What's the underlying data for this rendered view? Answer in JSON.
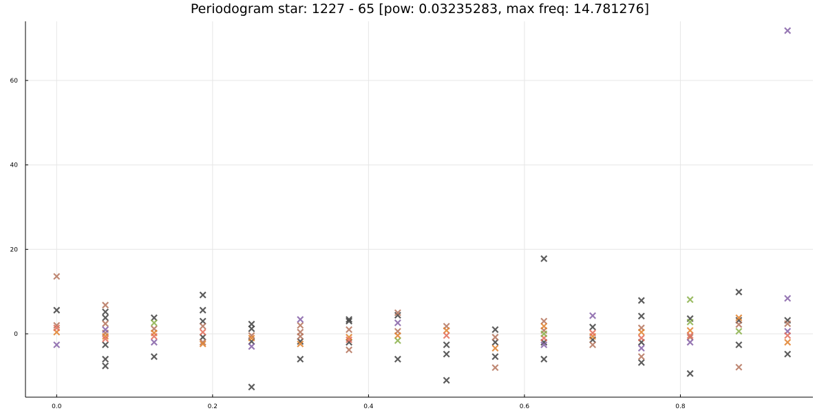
{
  "chart_data": {
    "type": "scatter",
    "title": "Periodogram star: 1227 - 65 [pow: 0.03235283, max freq: 14.781276]",
    "xlabel": "",
    "ylabel": "",
    "xlim": [
      -0.04,
      0.97
    ],
    "ylim": [
      -15,
      74
    ],
    "xticks": [
      0.0,
      0.2,
      0.4,
      0.6,
      0.8
    ],
    "xtick_labels": [
      "0.0",
      "0.2",
      "0.4",
      "0.6",
      "0.8"
    ],
    "yticks": [
      0,
      20,
      40,
      60
    ],
    "ytick_labels": [
      "0",
      "20",
      "40",
      "60"
    ],
    "grid": true,
    "legend": "none",
    "marker": "x",
    "series": [
      {
        "color": "#404040",
        "points": [
          [
            0.0,
            5.6
          ],
          [
            0.0625,
            5.2
          ],
          [
            0.0625,
            3.8
          ],
          [
            0.0625,
            -2.6
          ],
          [
            0.0625,
            -6.0
          ],
          [
            0.0625,
            -7.6
          ],
          [
            0.125,
            3.8
          ],
          [
            0.125,
            -5.4
          ],
          [
            0.1875,
            9.2
          ],
          [
            0.1875,
            5.6
          ],
          [
            0.1875,
            3.0
          ],
          [
            0.1875,
            -0.8
          ],
          [
            0.25,
            2.3
          ],
          [
            0.25,
            1.2
          ],
          [
            0.25,
            -1.8
          ],
          [
            0.25,
            -12.6
          ],
          [
            0.3125,
            -1.8
          ],
          [
            0.3125,
            -6.0
          ],
          [
            0.375,
            3.4
          ],
          [
            0.375,
            3.0
          ],
          [
            0.375,
            -2.0
          ],
          [
            0.4375,
            4.4
          ],
          [
            0.4375,
            -6.0
          ],
          [
            0.5,
            -2.6
          ],
          [
            0.5,
            -4.8
          ],
          [
            0.5,
            -11.0
          ],
          [
            0.5625,
            1.0
          ],
          [
            0.5625,
            -2.0
          ],
          [
            0.5625,
            -5.4
          ],
          [
            0.625,
            17.8
          ],
          [
            0.625,
            -2.0
          ],
          [
            0.625,
            -6.0
          ],
          [
            0.6875,
            1.6
          ],
          [
            0.6875,
            -1.4
          ],
          [
            0.75,
            7.9
          ],
          [
            0.75,
            4.2
          ],
          [
            0.75,
            -2.0
          ],
          [
            0.75,
            -6.8
          ],
          [
            0.8125,
            3.6
          ],
          [
            0.8125,
            -9.4
          ],
          [
            0.875,
            9.9
          ],
          [
            0.875,
            3.2
          ],
          [
            0.875,
            -2.6
          ],
          [
            0.9375,
            3.2
          ],
          [
            0.9375,
            -4.8
          ]
        ]
      },
      {
        "color": "#b5745c",
        "points": [
          [
            0.0,
            13.6
          ],
          [
            0.0,
            2.0
          ],
          [
            0.0625,
            6.8
          ],
          [
            0.0625,
            2.4
          ],
          [
            0.0625,
            0.2
          ],
          [
            0.125,
            1.2
          ],
          [
            0.1875,
            1.8
          ],
          [
            0.1875,
            -2.0
          ],
          [
            0.25,
            -0.4
          ],
          [
            0.3125,
            2.0
          ],
          [
            0.3125,
            0.4
          ],
          [
            0.3125,
            -0.6
          ],
          [
            0.375,
            1.0
          ],
          [
            0.375,
            -3.8
          ],
          [
            0.4375,
            5.0
          ],
          [
            0.4375,
            0.6
          ],
          [
            0.5,
            1.8
          ],
          [
            0.5625,
            -0.8
          ],
          [
            0.5625,
            -8.0
          ],
          [
            0.625,
            3.0
          ],
          [
            0.625,
            0.8
          ],
          [
            0.6875,
            -2.6
          ],
          [
            0.75,
            1.4
          ],
          [
            0.75,
            -5.4
          ],
          [
            0.8125,
            -0.8
          ],
          [
            0.875,
            2.2
          ],
          [
            0.875,
            -7.9
          ],
          [
            0.9375,
            2.4
          ]
        ]
      },
      {
        "color": "#8561a8",
        "points": [
          [
            0.0,
            -2.6
          ],
          [
            0.0625,
            1.0
          ],
          [
            0.125,
            -2.0
          ],
          [
            0.25,
            -3.0
          ],
          [
            0.3125,
            3.4
          ],
          [
            0.4375,
            2.6
          ],
          [
            0.625,
            -2.6
          ],
          [
            0.6875,
            4.3
          ],
          [
            0.75,
            -3.4
          ],
          [
            0.8125,
            -2.0
          ],
          [
            0.9375,
            71.8
          ],
          [
            0.9375,
            8.4
          ],
          [
            0.9375,
            0.6
          ]
        ]
      },
      {
        "color": "#e1812c",
        "points": [
          [
            0.0,
            0.4
          ],
          [
            0.0625,
            -0.6
          ],
          [
            0.125,
            0.2
          ],
          [
            0.1875,
            -2.4
          ],
          [
            0.25,
            -1.0
          ],
          [
            0.3125,
            -2.4
          ],
          [
            0.375,
            -0.8
          ],
          [
            0.4375,
            -0.4
          ],
          [
            0.5,
            0.8
          ],
          [
            0.5625,
            -3.4
          ],
          [
            0.625,
            1.8
          ],
          [
            0.6875,
            -0.6
          ],
          [
            0.75,
            0.4
          ],
          [
            0.8125,
            0.8
          ],
          [
            0.875,
            3.8
          ],
          [
            0.9375,
            -2.0
          ]
        ]
      },
      {
        "color": "#e36d5a",
        "points": [
          [
            0.0,
            1.4
          ],
          [
            0.0625,
            -1.2
          ],
          [
            0.125,
            -0.6
          ],
          [
            0.1875,
            0.4
          ],
          [
            0.375,
            -1.4
          ],
          [
            0.5,
            -0.4
          ],
          [
            0.625,
            -1.0
          ],
          [
            0.6875,
            0.2
          ],
          [
            0.75,
            -1.0
          ],
          [
            0.8125,
            -0.4
          ],
          [
            0.9375,
            -0.4
          ]
        ]
      },
      {
        "color": "#8ab14a",
        "points": [
          [
            0.125,
            2.6
          ],
          [
            0.4375,
            -1.6
          ],
          [
            0.625,
            0.0
          ],
          [
            0.8125,
            8.1
          ],
          [
            0.8125,
            2.8
          ],
          [
            0.875,
            0.6
          ]
        ]
      }
    ]
  }
}
